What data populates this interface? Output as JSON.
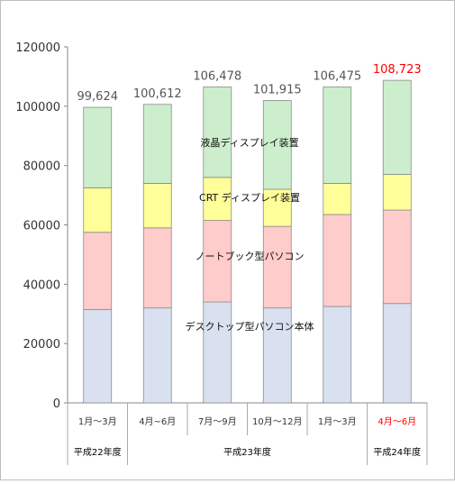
{
  "chart_data": {
    "type": "bar",
    "stacked": true,
    "ylim": [
      0,
      120000
    ],
    "yticks": [
      "0",
      "20000",
      "40000",
      "60000",
      "80000",
      "100000",
      "120000"
    ],
    "grid": false,
    "categories": [
      "1月～3月",
      "4月~6月",
      "7月～9月",
      "10月～12月",
      "1月～3月",
      "4月～6月"
    ],
    "highlight_index": 5,
    "highlight_color": "#ff0000",
    "totals": [
      "99,624",
      "100,612",
      "106,478",
      "101,915",
      "106,475",
      "108,723"
    ],
    "fiscal_years": [
      {
        "label": "平成22年度",
        "from": 0,
        "to": 0
      },
      {
        "label": "平成23年度",
        "from": 1,
        "to": 4
      },
      {
        "label": "平成24年度",
        "from": 5,
        "to": 5
      }
    ],
    "series": [
      {
        "name": "デスクトップ型パソコン本体",
        "color": "#d9e0f0",
        "values": [
          31500,
          32000,
          34000,
          32000,
          32500,
          33500
        ]
      },
      {
        "name": "ノートブック型パソコン",
        "color": "#ffcccc",
        "values": [
          26000,
          27000,
          27500,
          27500,
          31000,
          31500
        ]
      },
      {
        "name": "CRT ディスプレイ装置",
        "color": "#ffff99",
        "values": [
          15000,
          15000,
          14500,
          12500,
          10500,
          12000
        ]
      },
      {
        "name": "液晶ディスプレイ装置",
        "color": "#cceecc",
        "values": [
          27124,
          26612,
          30478,
          29915,
          32475,
          31723
        ]
      }
    ]
  }
}
